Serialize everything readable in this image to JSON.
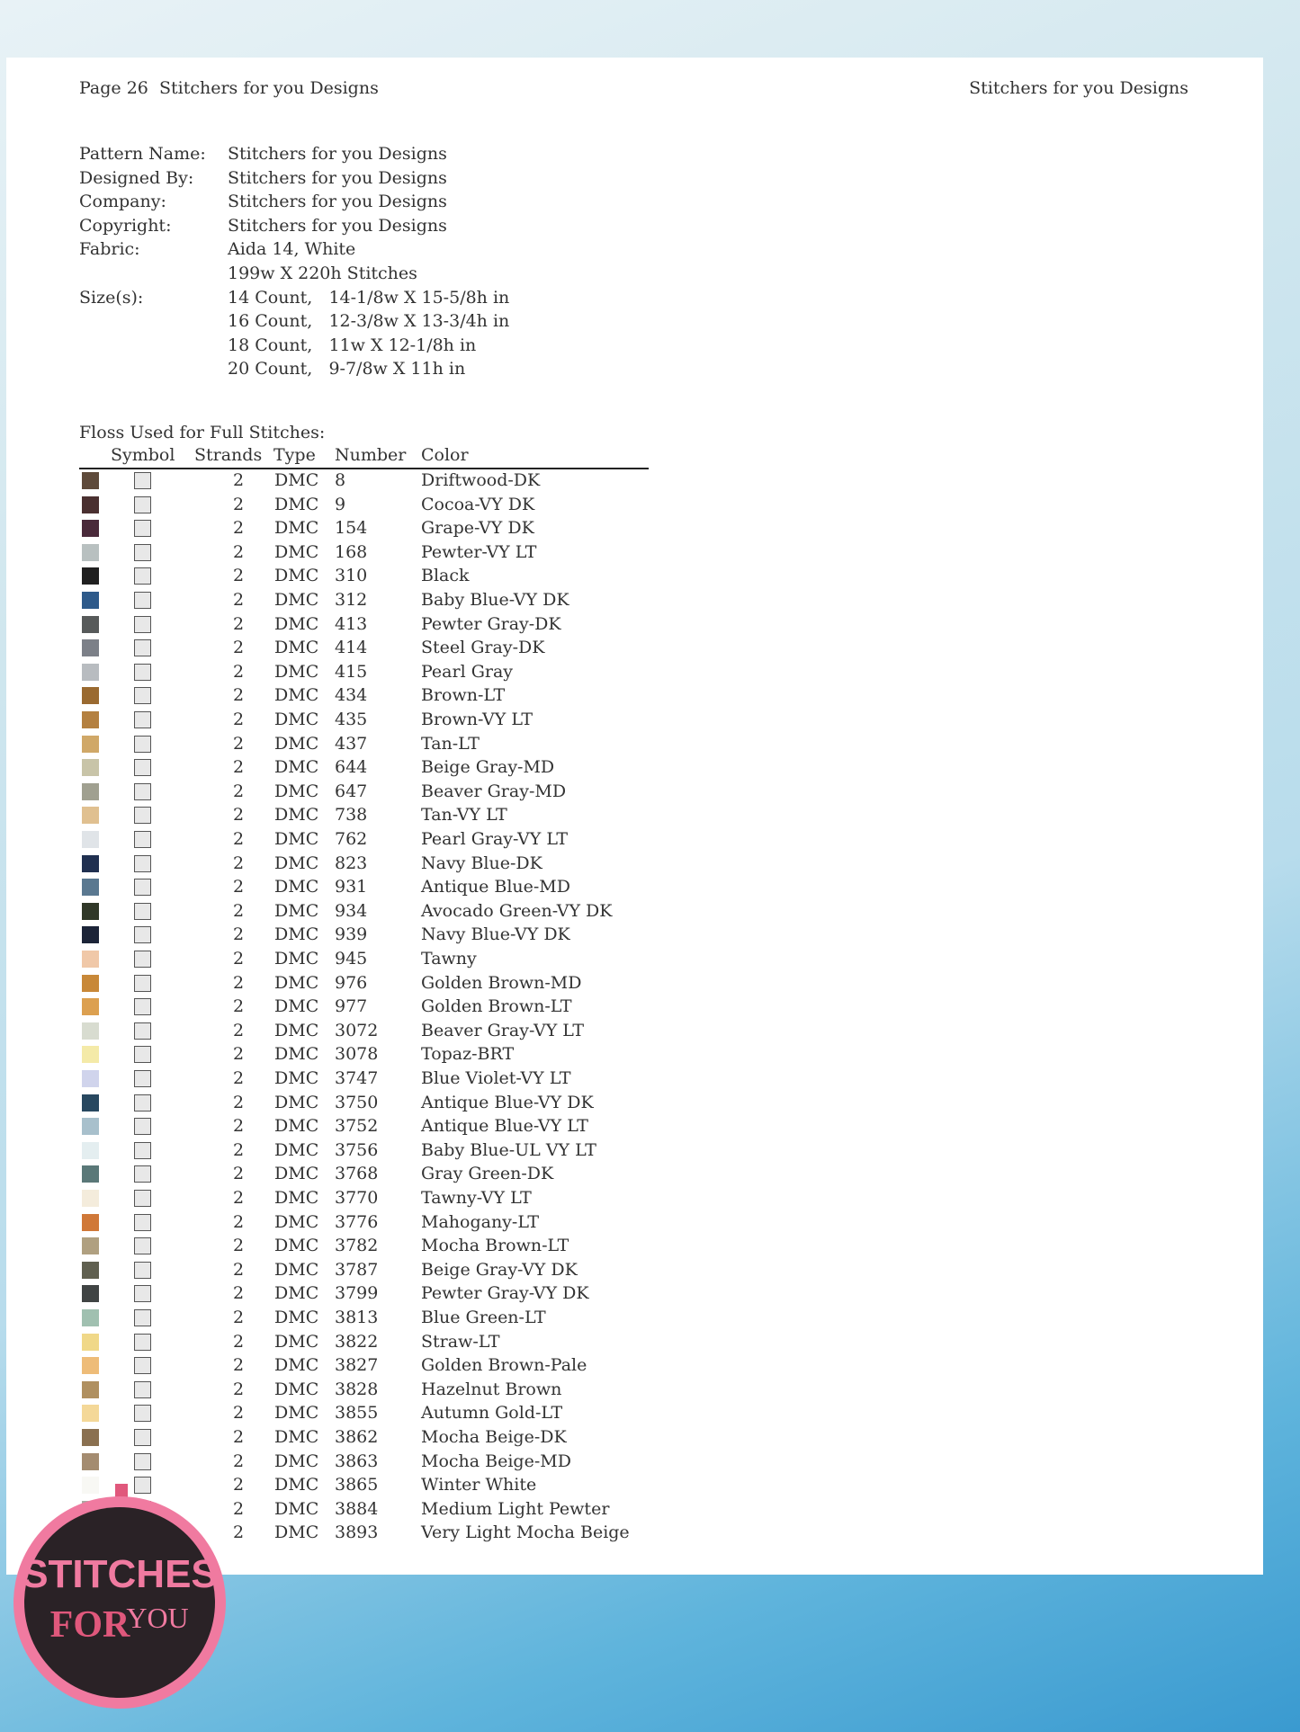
{
  "header": {
    "left": "Page 26  Stitchers for you Designs",
    "right": "Stitchers for you Designs"
  },
  "info": [
    {
      "label": "Pattern Name:",
      "values": [
        "Stitchers for you Designs"
      ]
    },
    {
      "label": "Designed By:",
      "values": [
        "Stitchers for you Designs"
      ]
    },
    {
      "label": "Company:",
      "values": [
        "Stitchers for you Designs"
      ]
    },
    {
      "label": "Copyright:",
      "values": [
        "Stitchers for you Designs"
      ]
    },
    {
      "label": "Fabric:",
      "values": [
        "Aida 14, White",
        "199w X 220h Stitches"
      ]
    },
    {
      "label": "Size(s):",
      "values": [
        "14 Count,   14-1/8w X 15-5/8h in",
        "16 Count,   12-3/8w X 13-3/4h in",
        "18 Count,   11w X 12-1/8h in",
        "20 Count,   9-7/8w X 11h in"
      ]
    }
  ],
  "table": {
    "title": "Floss Used for Full Stitches:",
    "columns": [
      "Symbol",
      "Strands",
      "Type",
      "Number",
      "Color"
    ],
    "rows": [
      {
        "color": "#5e4a3a",
        "strands": "2",
        "type": "DMC",
        "number": "8",
        "name": "Driftwood-DK"
      },
      {
        "color": "#4a3030",
        "strands": "2",
        "type": "DMC",
        "number": "9",
        "name": "Cocoa-VY DK"
      },
      {
        "color": "#4a2a3a",
        "strands": "2",
        "type": "DMC",
        "number": "154",
        "name": "Grape-VY DK"
      },
      {
        "color": "#b8c0c0",
        "strands": "2",
        "type": "DMC",
        "number": "168",
        "name": "Pewter-VY LT"
      },
      {
        "color": "#202020",
        "strands": "2",
        "type": "DMC",
        "number": "310",
        "name": "Black"
      },
      {
        "color": "#2e5a8a",
        "strands": "2",
        "type": "DMC",
        "number": "312",
        "name": "Baby Blue-VY DK"
      },
      {
        "color": "#575a5a",
        "strands": "2",
        "type": "DMC",
        "number": "413",
        "name": "Pewter Gray-DK"
      },
      {
        "color": "#7c8088",
        "strands": "2",
        "type": "DMC",
        "number": "414",
        "name": "Steel Gray-DK"
      },
      {
        "color": "#b8bcc0",
        "strands": "2",
        "type": "DMC",
        "number": "415",
        "name": "Pearl Gray"
      },
      {
        "color": "#9a6a30",
        "strands": "2",
        "type": "DMC",
        "number": "434",
        "name": "Brown-LT"
      },
      {
        "color": "#b48040",
        "strands": "2",
        "type": "DMC",
        "number": "435",
        "name": "Brown-VY LT"
      },
      {
        "color": "#d0a868",
        "strands": "2",
        "type": "DMC",
        "number": "437",
        "name": "Tan-LT"
      },
      {
        "color": "#c8c4a8",
        "strands": "2",
        "type": "DMC",
        "number": "644",
        "name": "Beige Gray-MD"
      },
      {
        "color": "#a0a090",
        "strands": "2",
        "type": "DMC",
        "number": "647",
        "name": "Beaver Gray-MD"
      },
      {
        "color": "#e0c090",
        "strands": "2",
        "type": "DMC",
        "number": "738",
        "name": "Tan-VY LT"
      },
      {
        "color": "#e0e4e8",
        "strands": "2",
        "type": "DMC",
        "number": "762",
        "name": "Pearl Gray-VY LT"
      },
      {
        "color": "#203050",
        "strands": "2",
        "type": "DMC",
        "number": "823",
        "name": "Navy Blue-DK"
      },
      {
        "color": "#5a7890",
        "strands": "2",
        "type": "DMC",
        "number": "931",
        "name": "Antique Blue-MD"
      },
      {
        "color": "#303828",
        "strands": "2",
        "type": "DMC",
        "number": "934",
        "name": "Avocado Green-VY DK"
      },
      {
        "color": "#1c2438",
        "strands": "2",
        "type": "DMC",
        "number": "939",
        "name": "Navy Blue-VY DK"
      },
      {
        "color": "#f0c8a8",
        "strands": "2",
        "type": "DMC",
        "number": "945",
        "name": "Tawny"
      },
      {
        "color": "#c88838",
        "strands": "2",
        "type": "DMC",
        "number": "976",
        "name": "Golden Brown-MD"
      },
      {
        "color": "#dca050",
        "strands": "2",
        "type": "DMC",
        "number": "977",
        "name": "Golden Brown-LT"
      },
      {
        "color": "#d8dcd0",
        "strands": "2",
        "type": "DMC",
        "number": "3072",
        "name": "Beaver Gray-VY LT"
      },
      {
        "color": "#f4eaa8",
        "strands": "2",
        "type": "DMC",
        "number": "3078",
        "name": "Topaz-BRT"
      },
      {
        "color": "#d0d4ec",
        "strands": "2",
        "type": "DMC",
        "number": "3747",
        "name": "Blue Violet-VY LT"
      },
      {
        "color": "#284860",
        "strands": "2",
        "type": "DMC",
        "number": "3750",
        "name": "Antique Blue-VY DK"
      },
      {
        "color": "#a8c0cc",
        "strands": "2",
        "type": "DMC",
        "number": "3752",
        "name": "Antique Blue-VY LT"
      },
      {
        "color": "#e4eef0",
        "strands": "2",
        "type": "DMC",
        "number": "3756",
        "name": "Baby Blue-UL VY LT"
      },
      {
        "color": "#5a7878",
        "strands": "2",
        "type": "DMC",
        "number": "3768",
        "name": "Gray Green-DK"
      },
      {
        "color": "#f4ecdc",
        "strands": "2",
        "type": "DMC",
        "number": "3770",
        "name": "Tawny-VY LT"
      },
      {
        "color": "#d07838",
        "strands": "2",
        "type": "DMC",
        "number": "3776",
        "name": "Mahogany-LT"
      },
      {
        "color": "#b0a080",
        "strands": "2",
        "type": "DMC",
        "number": "3782",
        "name": "Mocha Brown-LT"
      },
      {
        "color": "#606050",
        "strands": "2",
        "type": "DMC",
        "number": "3787",
        "name": "Beige Gray-VY DK"
      },
      {
        "color": "#404444",
        "strands": "2",
        "type": "DMC",
        "number": "3799",
        "name": "Pewter Gray-VY DK"
      },
      {
        "color": "#a0c0b0",
        "strands": "2",
        "type": "DMC",
        "number": "3813",
        "name": "Blue Green-LT"
      },
      {
        "color": "#f0d888",
        "strands": "2",
        "type": "DMC",
        "number": "3822",
        "name": "Straw-LT"
      },
      {
        "color": "#eebc78",
        "strands": "2",
        "type": "DMC",
        "number": "3827",
        "name": "Golden Brown-Pale"
      },
      {
        "color": "#b09060",
        "strands": "2",
        "type": "DMC",
        "number": "3828",
        "name": "Hazelnut Brown"
      },
      {
        "color": "#f4d898",
        "strands": "2",
        "type": "DMC",
        "number": "3855",
        "name": "Autumn Gold-LT"
      },
      {
        "color": "#8a7050",
        "strands": "2",
        "type": "DMC",
        "number": "3862",
        "name": "Mocha Beige-DK"
      },
      {
        "color": "#a48c70",
        "strands": "2",
        "type": "DMC",
        "number": "3863",
        "name": "Mocha Beige-MD"
      },
      {
        "color": "#f8f8f4",
        "strands": "2",
        "type": "DMC",
        "number": "3865",
        "name": "Winter White"
      },
      {
        "color": "#a8a8a0",
        "strands": "2",
        "type": "DMC",
        "number": "3884",
        "name": "Medium Light Pewter"
      },
      {
        "color": "#c8b8a0",
        "strands": "2",
        "type": "DMC",
        "number": "3893",
        "name": "Very Light Mocha Beige"
      }
    ]
  },
  "logo": {
    "line1": "STITCHES",
    "line2": "FOR",
    "line3": "YOU"
  }
}
